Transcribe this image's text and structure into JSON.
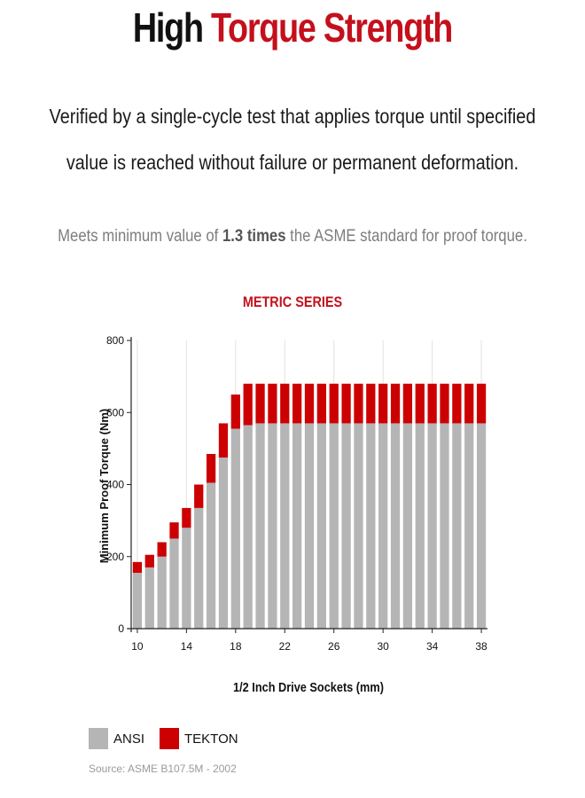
{
  "header": {
    "title_part1": "High ",
    "title_part2": "Torque Strength",
    "desc_line1": "Verified by a single-cycle test that applies torque until specified",
    "desc_line2": "value is reached without failure or permanent deformation.",
    "meets_before": "Meets minimum value of ",
    "meets_bold": "1.3 times",
    "meets_after": " the ASME standard for proof torque."
  },
  "colors": {
    "accent": "#c4101c",
    "ansi": "#b5b5b5",
    "tekton": "#cc0000"
  },
  "chart_data": {
    "type": "bar",
    "stacked": true,
    "title": "METRIC SERIES",
    "xlabel": "1/2 Inch Drive Sockets (mm)",
    "ylabel": "Minimum Proof Torque (Nm)",
    "ylim": [
      0,
      800
    ],
    "yticks": [
      0,
      200,
      400,
      600,
      800
    ],
    "xticks": [
      10,
      14,
      18,
      22,
      26,
      30,
      34,
      38
    ],
    "grid": "vertical",
    "legend_position": "bottom-left",
    "categories": [
      10,
      11,
      12,
      13,
      14,
      15,
      16,
      17,
      18,
      19,
      20,
      21,
      22,
      23,
      24,
      25,
      26,
      27,
      28,
      29,
      30,
      31,
      32,
      33,
      34,
      35,
      36,
      37,
      38
    ],
    "series": [
      {
        "name": "ANSI",
        "values": [
          155,
          170,
          200,
          250,
          280,
          335,
          405,
          475,
          555,
          565,
          570,
          570,
          570,
          570,
          570,
          570,
          570,
          570,
          570,
          570,
          570,
          570,
          570,
          570,
          570,
          570,
          570,
          570,
          570
        ]
      },
      {
        "name": "TEKTON",
        "values": [
          30,
          35,
          40,
          45,
          55,
          65,
          80,
          95,
          95,
          115,
          110,
          110,
          110,
          110,
          110,
          110,
          110,
          110,
          110,
          110,
          110,
          110,
          110,
          110,
          110,
          110,
          110,
          110,
          110
        ]
      }
    ]
  },
  "source": "Source: ASME B107.5M - 2002"
}
